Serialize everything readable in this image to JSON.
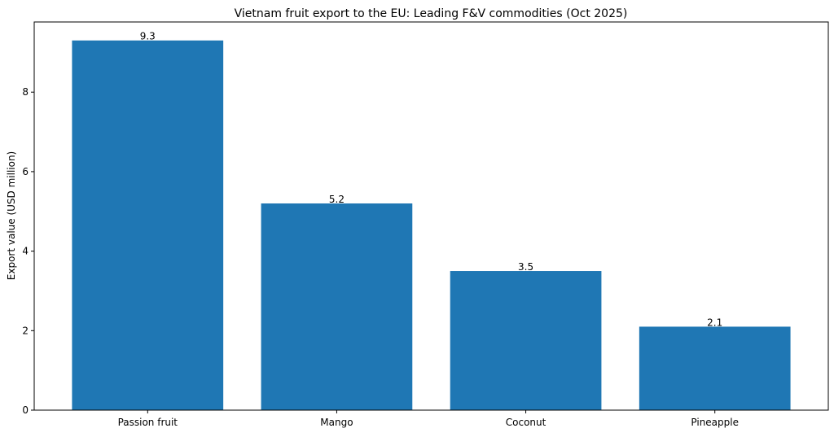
{
  "chart_data": {
    "type": "bar",
    "title": "Vietnam fruit export to the EU: Leading F&V commodities (Oct 2025)",
    "xlabel": "",
    "ylabel": "Export value (USD million)",
    "categories": [
      "Passion fruit",
      "Mango",
      "Coconut",
      "Pineapple"
    ],
    "values": [
      9.3,
      5.2,
      3.5,
      2.1
    ],
    "value_labels": [
      "9.3",
      "5.2",
      "3.5",
      "2.1"
    ],
    "ylim": [
      0,
      9.765
    ],
    "yticks": [
      0,
      2,
      4,
      6,
      8
    ],
    "ytick_labels": [
      "0",
      "2",
      "4",
      "6",
      "8"
    ],
    "bar_color": "#1f77b4",
    "grid": false,
    "legend": "none"
  }
}
